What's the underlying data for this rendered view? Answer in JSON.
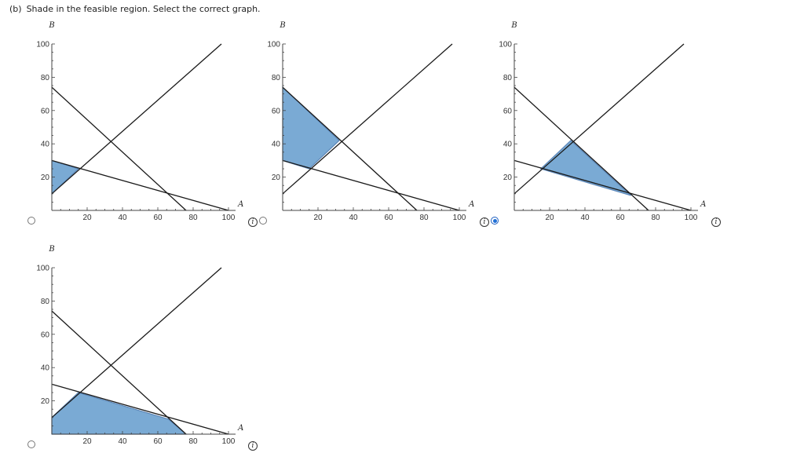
{
  "question": {
    "part": "(b)",
    "text": "Shade in the feasible region. Select the correct graph."
  },
  "colors": {
    "shade_fill": "#7aaad4",
    "shade_stroke": "#5b86b8",
    "line": "#1a1a1a",
    "radio_selected": "#1f6fd6"
  },
  "info_icon_label": "i",
  "options": [
    {
      "id": "option-a",
      "selected": false,
      "chart_data": {
        "type": "line",
        "xlabel": "A",
        "ylabel": "B",
        "xlim": [
          0,
          100
        ],
        "ylim": [
          0,
          100
        ],
        "xticks": [
          "20",
          "40",
          "60",
          "80",
          "100"
        ],
        "yticks": [
          "20",
          "40",
          "60",
          "80",
          "100"
        ],
        "lines": [
          {
            "points": [
              [
                0,
                10
              ],
              [
                96,
                100
              ]
            ]
          },
          {
            "points": [
              [
                0,
                74
              ],
              [
                76,
                0
              ]
            ]
          },
          {
            "points": [
              [
                0,
                30
              ],
              [
                100,
                0
              ]
            ]
          }
        ],
        "shaded_region": [
          [
            0,
            10
          ],
          [
            0,
            30
          ],
          [
            15,
            25
          ]
        ]
      }
    },
    {
      "id": "option-b",
      "selected": false,
      "chart_data": {
        "type": "line",
        "xlabel": "A",
        "ylabel": "B",
        "xlim": [
          0,
          100
        ],
        "ylim": [
          0,
          100
        ],
        "xticks": [
          "20",
          "40",
          "60",
          "80",
          "100"
        ],
        "yticks": [
          "20",
          "40",
          "60",
          "80",
          "100"
        ],
        "lines": [
          {
            "points": [
              [
                0,
                10
              ],
              [
                96,
                100
              ]
            ]
          },
          {
            "points": [
              [
                0,
                74
              ],
              [
                76,
                0
              ]
            ]
          },
          {
            "points": [
              [
                0,
                30
              ],
              [
                100,
                0
              ]
            ]
          }
        ],
        "shaded_region": [
          [
            0,
            30
          ],
          [
            0,
            74
          ],
          [
            32,
            42
          ],
          [
            15,
            25
          ]
        ]
      }
    },
    {
      "id": "option-c",
      "selected": true,
      "chart_data": {
        "type": "line",
        "xlabel": "A",
        "ylabel": "B",
        "xlim": [
          0,
          100
        ],
        "ylim": [
          0,
          100
        ],
        "xticks": [
          "20",
          "40",
          "60",
          "80",
          "100"
        ],
        "yticks": [
          "20",
          "40",
          "60",
          "80",
          "100"
        ],
        "lines": [
          {
            "points": [
              [
                0,
                10
              ],
              [
                96,
                100
              ]
            ]
          },
          {
            "points": [
              [
                0,
                74
              ],
              [
                76,
                0
              ]
            ]
          },
          {
            "points": [
              [
                0,
                30
              ],
              [
                100,
                0
              ]
            ]
          }
        ],
        "shaded_region": [
          [
            15,
            25
          ],
          [
            32,
            42
          ],
          [
            66,
            9
          ]
        ]
      }
    },
    {
      "id": "option-d",
      "selected": false,
      "chart_data": {
        "type": "line",
        "xlabel": "A",
        "ylabel": "B",
        "xlim": [
          0,
          100
        ],
        "ylim": [
          0,
          100
        ],
        "xticks": [
          "20",
          "40",
          "60",
          "80",
          "100"
        ],
        "yticks": [
          "20",
          "40",
          "60",
          "80",
          "100"
        ],
        "lines": [
          {
            "points": [
              [
                0,
                10
              ],
              [
                96,
                100
              ]
            ]
          },
          {
            "points": [
              [
                0,
                74
              ],
              [
                76,
                0
              ]
            ]
          },
          {
            "points": [
              [
                0,
                30
              ],
              [
                100,
                0
              ]
            ]
          }
        ],
        "shaded_region": [
          [
            0,
            0
          ],
          [
            0,
            10
          ],
          [
            15,
            25
          ],
          [
            66,
            9
          ],
          [
            76,
            0
          ]
        ]
      }
    }
  ]
}
